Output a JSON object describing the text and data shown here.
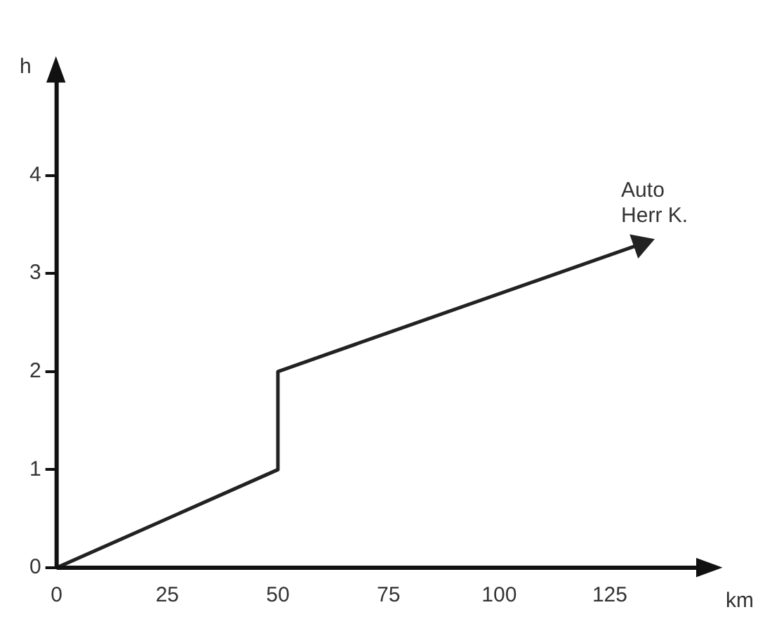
{
  "chart_data": {
    "type": "line",
    "xlabel": "km",
    "ylabel": "h",
    "series": [
      {
        "name": "Auto Herr K.",
        "color": "#222222",
        "x": [
          0,
          50,
          50,
          132
        ],
        "values": [
          0,
          1,
          2,
          3.3
        ]
      }
    ],
    "xlim": [
      0,
      148
    ],
    "ylim": [
      0,
      5.1
    ],
    "xticks": [
      0,
      25,
      50,
      75,
      100,
      125
    ],
    "yticks": [
      0,
      1,
      2,
      3,
      4
    ],
    "grid": false,
    "legend": false,
    "marker": "none",
    "line_style": "solid"
  }
}
